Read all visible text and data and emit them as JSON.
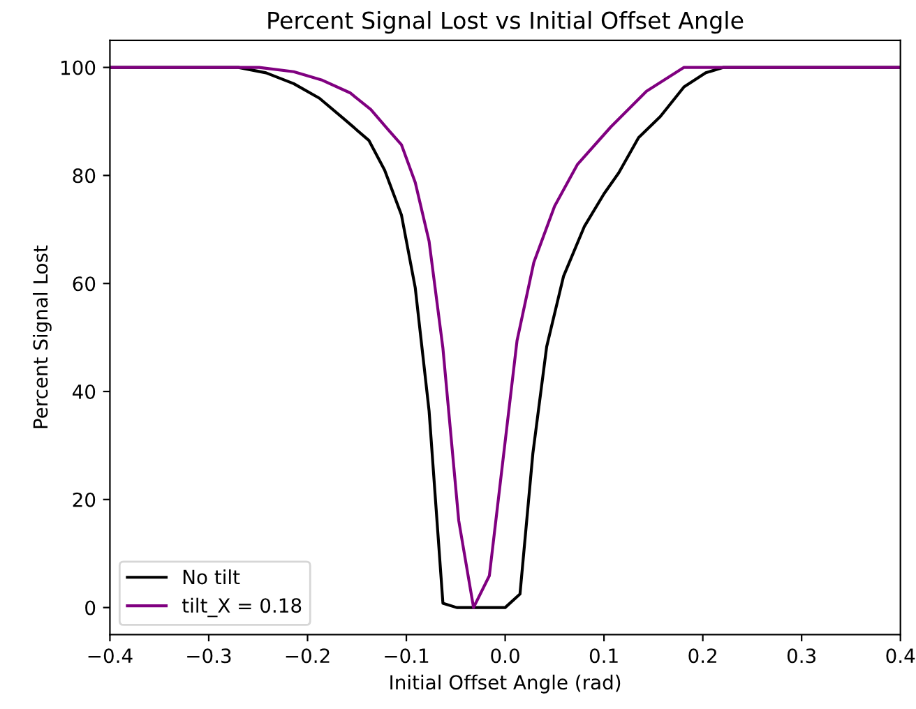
{
  "chart_data": {
    "type": "line",
    "title": "Percent Signal Lost vs Initial Offset Angle",
    "xlabel": "Initial Offset Angle (rad)",
    "ylabel": "Percent Signal Lost",
    "xlim": [
      -0.4,
      0.4
    ],
    "ylim": [
      -5,
      105
    ],
    "xticks": [
      {
        "value": -0.4,
        "label": "−0.4"
      },
      {
        "value": -0.3,
        "label": "−0.3"
      },
      {
        "value": -0.2,
        "label": "−0.2"
      },
      {
        "value": -0.1,
        "label": "−0.1"
      },
      {
        "value": 0,
        "label": "0.0"
      },
      {
        "value": 0.1,
        "label": "0.1"
      },
      {
        "value": 0.2,
        "label": "0.2"
      },
      {
        "value": 0.3,
        "label": "0.3"
      },
      {
        "value": 0.4,
        "label": "0.4"
      }
    ],
    "yticks": [
      0,
      20,
      40,
      60,
      80,
      100
    ],
    "grid": false,
    "legend": "bottom left",
    "series": [
      {
        "name": "No tilt",
        "color": "#000000",
        "x": [
          -0.4,
          -0.27,
          -0.242,
          -0.214,
          -0.188,
          -0.164,
          -0.138,
          -0.122,
          -0.105,
          -0.091,
          -0.077,
          -0.063,
          -0.049,
          0.0,
          0.015,
          0.028,
          0.042,
          0.059,
          0.08,
          0.1,
          0.115,
          0.135,
          0.157,
          0.181,
          0.203,
          0.221,
          0.4
        ],
        "values": [
          100,
          100,
          99,
          97,
          94.3,
          90.6,
          86.5,
          81,
          72.7,
          59.2,
          36.4,
          0.8,
          0,
          0,
          2.5,
          28.5,
          48.3,
          61.3,
          70.5,
          76.6,
          80.5,
          87,
          90.9,
          96.4,
          99,
          100,
          100
        ]
      },
      {
        "name": "tilt_X = 0.18",
        "color": "#800080",
        "x": [
          -0.4,
          -0.249,
          -0.214,
          -0.186,
          -0.157,
          -0.136,
          -0.119,
          -0.105,
          -0.091,
          -0.077,
          -0.063,
          -0.047,
          -0.032,
          -0.016,
          0.012,
          0.029,
          0.05,
          0.073,
          0.107,
          0.143,
          0.181,
          0.4
        ],
        "values": [
          100,
          100,
          99.2,
          97.7,
          95.3,
          92.2,
          88.6,
          85.7,
          78.7,
          67.8,
          48,
          16.1,
          0,
          5.9,
          49.4,
          63.9,
          74.3,
          82,
          89,
          95.6,
          100,
          100
        ]
      }
    ]
  }
}
